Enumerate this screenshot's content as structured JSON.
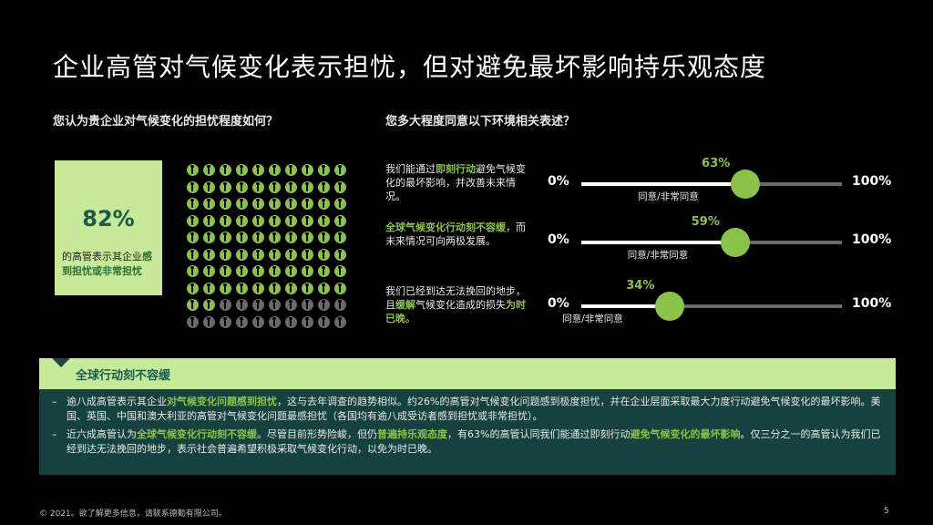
{
  "title": "企业高管对气候变化表示担忧，但对避免最坏影响持乐观态度",
  "left_question": "您认为贵企业对气候变化的担忧程度如何？",
  "right_question": "您多大程度同意以下环境相关表述？",
  "stat": {
    "value": "82%",
    "text_pre": "的高管表示其企业",
    "text_hl": "感到担忧或非常担忧"
  },
  "colors": {
    "accent": "#8bc34a",
    "box": "#c7e99a",
    "panel": "#15423f",
    "dot_inactive": "#6a6a6a"
  },
  "chart_data": [
    {
      "type": "pictogram",
      "total": 100,
      "highlighted": 82,
      "rows": 10,
      "cols": 10,
      "icon": "person-icon"
    },
    {
      "type": "slider",
      "min_label": "0%",
      "max_label": "100%",
      "items": [
        {
          "value": 63,
          "label": "63%",
          "agree_label": "同意/非常同意",
          "pre": "我们能通过",
          "hl": "即刻行动",
          "post": "避免气候变化的最坏影响，并改善未来情况。"
        },
        {
          "value": 59,
          "label": "59%",
          "agree_label": "同意/非常同意",
          "pre": "",
          "hl": "全球气候变化行动刻不容缓",
          "post": "，而未来情况可向两极发展。"
        },
        {
          "value": 34,
          "label": "34%",
          "agree_label": "同意/非常同意",
          "pre": "我们已经到达无法挽回的地步，且",
          "hl": "缓解",
          "post": "气候变化造成的损失",
          "hl2": "为时已晚",
          "post2": "。"
        }
      ]
    }
  ],
  "panel": {
    "heading": "全球行动刻不容缓",
    "bullets": [
      {
        "dash": "–",
        "parts": [
          {
            "t": "逾八成高管表示其企业",
            "g": false
          },
          {
            "t": "对气候变化问题感到担忧",
            "g": true
          },
          {
            "t": "，这与去年调查的趋势相似。约26%的高管对气候变化问题感到极度担忧，并在企业层面采取最大力度行动避免气候变化的最坏影响。美国、英国、中国和澳大利亚的高管对气候变化问题最感担忧（各国均有逾八成受访者感到担忧或非常担忧）。",
            "g": false
          }
        ]
      },
      {
        "dash": "–",
        "parts": [
          {
            "t": "近六成高管认为",
            "g": false
          },
          {
            "t": "全球气候变化行动刻不容缓",
            "g": true
          },
          {
            "t": "。尽管目前形势险峻，但仍",
            "g": false
          },
          {
            "t": "普遍持乐观态度",
            "g": true
          },
          {
            "t": "，有63%的高管认同我们能通过即刻行动",
            "g": false
          },
          {
            "t": "避免气候变化的最坏影响",
            "g": true
          },
          {
            "t": "。仅三分之一的高管认为我们已经到达无法挽回的地步，表示社会普遍希望积极采取气候变化行动，以免为时已晚。",
            "g": false
          }
        ]
      }
    ]
  },
  "footer": "© 2021。欲了解更多信息，请联系德勤有限公司。",
  "page_number": "5"
}
